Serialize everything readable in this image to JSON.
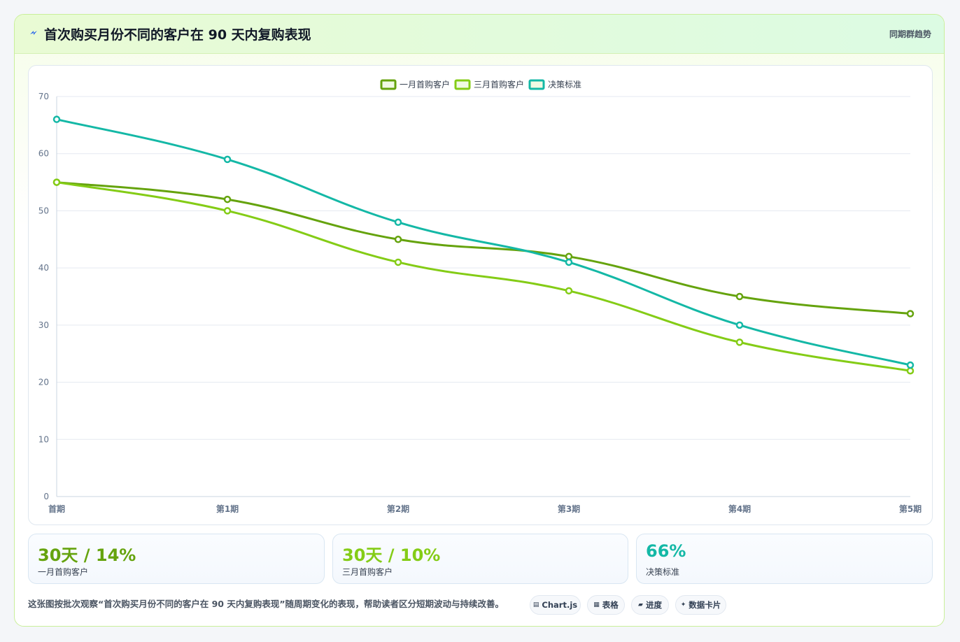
{
  "header": {
    "title": "首次购买月份不同的客户在 90 天内复购表现",
    "badge": "同期群趋势",
    "icon": "lightning-icon"
  },
  "chart_data": {
    "type": "line",
    "categories": [
      "首期",
      "第1期",
      "第2期",
      "第3期",
      "第4期",
      "第5期"
    ],
    "ylim": [
      0,
      70
    ],
    "yticks": [
      0,
      10,
      20,
      30,
      40,
      50,
      60,
      70
    ],
    "grid": true,
    "legend_position": "top-center",
    "xlabel": "",
    "ylabel": "",
    "series": [
      {
        "name": "一月首购客户",
        "color": "#65a30d",
        "values": [
          55,
          52,
          45,
          42,
          35,
          32
        ]
      },
      {
        "name": "三月首购客户",
        "color": "#84cc16",
        "values": [
          55,
          50,
          41,
          36,
          27,
          22
        ]
      },
      {
        "name": "决策标准",
        "color": "#14b8a6",
        "values": [
          66,
          59,
          48,
          41,
          30,
          23
        ]
      }
    ]
  },
  "stats": [
    {
      "value": "30天 / 14%",
      "label": "一月首购客户",
      "color": "#65a30d"
    },
    {
      "value": "30天 / 10%",
      "label": "三月首购客户",
      "color": "#84cc16"
    },
    {
      "value": "66%",
      "label": "决策标准",
      "color": "#14b8a6"
    }
  ],
  "footnote": "这张图按批次观察“首次购买月份不同的客户在 90 天内复购表现”随周期变化的表现，帮助读者区分短期波动与持续改善。",
  "pills": [
    {
      "icon": "▤",
      "icon_name": "chart-icon",
      "label": "Chart.js"
    },
    {
      "icon": "▦",
      "icon_name": "table-icon",
      "label": "表格"
    },
    {
      "icon": "▰",
      "icon_name": "progress-icon",
      "label": "进度"
    },
    {
      "icon": "✦",
      "icon_name": "sparkle-icon",
      "label": "数据卡片"
    }
  ]
}
